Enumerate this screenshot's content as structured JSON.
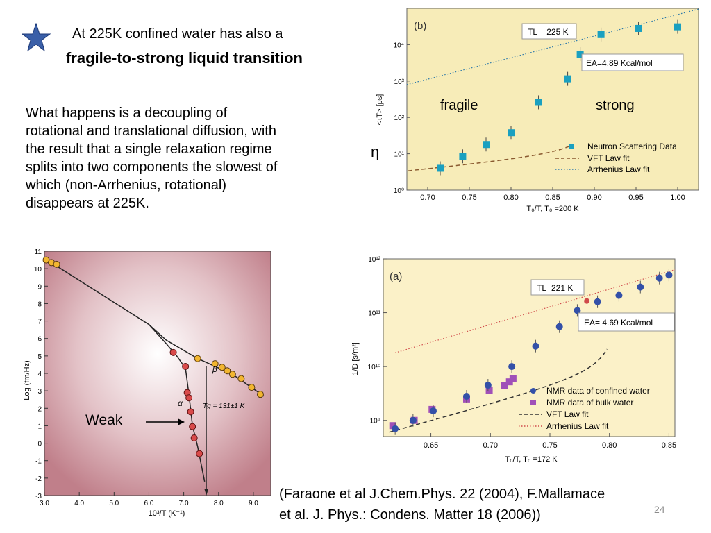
{
  "slide": {
    "title_line1": "At 225K confined water has also a",
    "title_line2": "fragile-to-strong liquid transition",
    "body_lines": [
      "What happens is a decoupling of",
      "rotational and translational diffusion, with",
      "the result that a single relaxation regime",
      "splits into two components the slowest of",
      "which (non-Arrhenius, rotational)",
      "disappears at 225K."
    ],
    "weak_label": "Weak",
    "reference_lines": [
      "(Faraone et al J.Chem.Phys. 22 (2004), F.Mallamace",
      "et al. J. Phys.: Condens. Matter 18 (2006))"
    ],
    "slide_number": "24",
    "icon": "star-icon",
    "colors": {
      "star": "#3a5fa8",
      "chart_b_bg": "#f7ecb8",
      "chart_a_bg": "#fbf1c8",
      "marker_b": "#1aa0c0",
      "marker_a_confined": "#3350a8",
      "marker_a_bulk": "#a050b8",
      "dielectric_bg": "#c78a94"
    }
  },
  "chart_data": [
    {
      "id": "chart-b",
      "type": "scatter",
      "panel_label": "(b)",
      "xlabel": "T₀/T, T₀ =200 K",
      "ylabel": "<τT> [ps]",
      "side_symbol": "η",
      "xlim": [
        0.675,
        1.025
      ],
      "ylim_log10": [
        0,
        5
      ],
      "log_y": true,
      "xticks": [
        "0.70",
        "0.75",
        "0.80",
        "0.85",
        "0.90",
        "0.95",
        "1.00"
      ],
      "yticks": [
        "10⁰",
        "10¹",
        "10²",
        "10³",
        "10⁴"
      ],
      "annotations": {
        "tl": "TL = 225 K",
        "ea": "EA=4.89 Kcal/mol",
        "fragile": "fragile",
        "strong": "strong"
      },
      "series": [
        {
          "name": "Neutron Scattering Data",
          "marker": "square",
          "x": [
            0.715,
            0.742,
            0.77,
            0.8,
            0.833,
            0.868,
            0.883,
            0.908,
            0.953,
            1.0
          ],
          "y": [
            4,
            8.5,
            18,
            38,
            260,
            1150,
            5500,
            19000,
            28000,
            31000
          ]
        },
        {
          "name": "VFT Law fit",
          "line": "dashed"
        },
        {
          "name": "Arrhenius Law fit",
          "line": "dotted"
        }
      ]
    },
    {
      "id": "chart-a",
      "type": "scatter",
      "panel_label": "(a)",
      "xlabel": "T₀/T, T₀ =172 K",
      "ylabel": "1/D [s/m²]",
      "xlim": [
        0.61,
        0.855
      ],
      "ylim_log10": [
        8.7,
        12
      ],
      "log_y": true,
      "xticks": [
        "0.65",
        "0.70",
        "0.75",
        "0.80",
        "0.85"
      ],
      "yticks": [
        "10⁹",
        "10¹⁰",
        "10¹¹",
        "10¹²"
      ],
      "annotations": {
        "tl": "TL=221 K",
        "ea": "EA= 4.69 Kcal/mol"
      },
      "series": [
        {
          "name": "NMR data of confined water",
          "marker": "circle",
          "x": [
            0.62,
            0.635,
            0.652,
            0.68,
            0.698,
            0.718,
            0.738,
            0.758,
            0.773,
            0.79,
            0.808,
            0.826,
            0.842,
            0.85
          ],
          "y": [
            700000000.0,
            1000000000.0,
            1500000000.0,
            2800000000.0,
            4500000000.0,
            10000000000.0,
            24000000000.0,
            55000000000.0,
            110000000000.0,
            160000000000.0,
            210000000000.0,
            300000000000.0,
            440000000000.0,
            500000000000.0
          ]
        },
        {
          "name": "NMR data of bulk water",
          "marker": "square",
          "x": [
            0.618,
            0.636,
            0.651,
            0.68,
            0.699,
            0.712,
            0.716,
            0.719
          ],
          "y": [
            800000000.0,
            1000000000.0,
            1600000000.0,
            2500000000.0,
            3600000000.0,
            4500000000.0,
            5200000000.0,
            6000000000.0
          ]
        },
        {
          "name": "VFT Law fit",
          "line": "dashed"
        },
        {
          "name": "Arrhenius Law fit",
          "line": "dotted"
        }
      ]
    },
    {
      "id": "chart-dielectric",
      "type": "scatter",
      "xlabel": "10³/T (K⁻¹)",
      "ylabel": "Log (fm/Hz)",
      "xlim": [
        3.0,
        9.5
      ],
      "ylim": [
        -3,
        11
      ],
      "xticks": [
        "3.0",
        "4.0",
        "5.0",
        "6.0",
        "7.0",
        "8.0",
        "9.0"
      ],
      "yticks": [
        "11",
        "10",
        "9",
        "8",
        "7",
        "6",
        "5",
        "4",
        "3",
        "2",
        "1",
        "0",
        "-1",
        "-2",
        "-3"
      ],
      "annotations": {
        "beta": "β",
        "alpha": "α",
        "tg": "Tg = 131±1 K"
      },
      "series": [
        {
          "name": "β",
          "marker": "circle",
          "x": [
            3.05,
            3.2,
            3.35,
            7.4,
            7.9,
            8.1,
            8.25,
            8.4,
            8.65,
            8.95,
            9.2
          ],
          "y": [
            10.5,
            10.35,
            10.25,
            4.85,
            4.55,
            4.35,
            4.15,
            3.95,
            3.7,
            3.2,
            2.8
          ]
        },
        {
          "name": "α",
          "marker": "circle",
          "x": [
            6.7,
            7.05,
            7.1,
            7.15,
            7.2,
            7.25,
            7.3,
            7.45
          ],
          "y": [
            5.2,
            4.4,
            2.9,
            2.6,
            1.8,
            0.95,
            0.3,
            -0.6
          ]
        }
      ]
    }
  ]
}
